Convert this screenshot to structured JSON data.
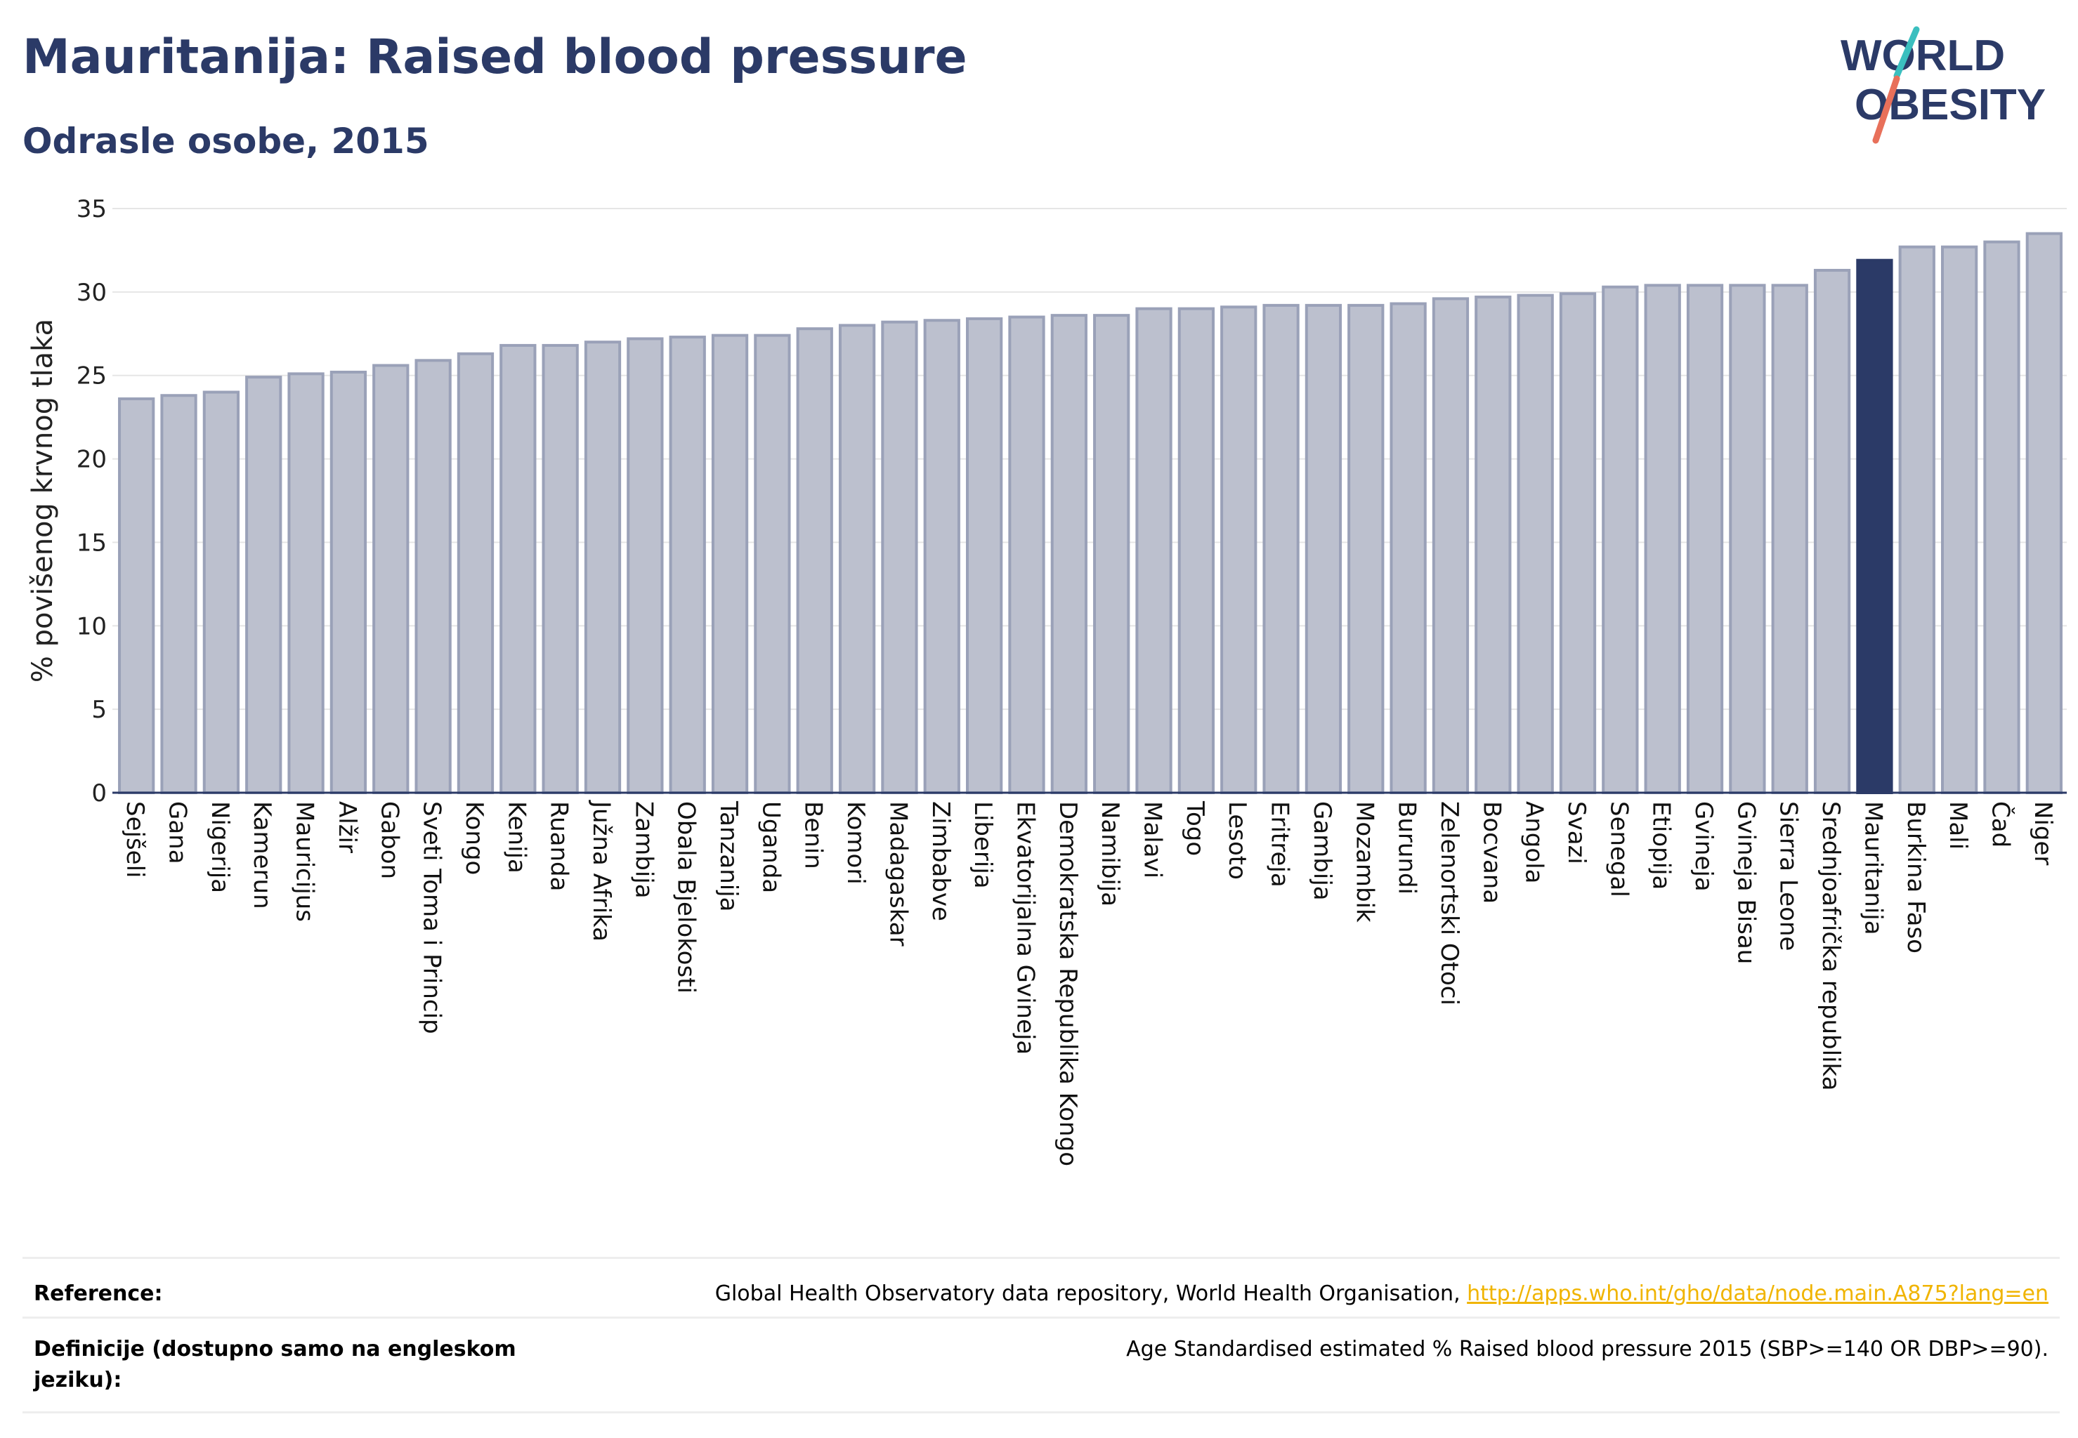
{
  "header": {
    "title": "Mauritanija: Raised blood pressure",
    "subtitle": "Odrasle osobe, 2015"
  },
  "logo": {
    "line1": "WORLD",
    "line2": "OBESITY"
  },
  "colors": {
    "bar": "#bcc0ce",
    "bar_edge": "#9aa1b8",
    "highlight": "#2b3a67",
    "title": "#2b3a67",
    "link": "#f0b400",
    "grid": "#e6e6e6"
  },
  "chart_data": {
    "type": "bar",
    "ylabel": "% povišenog krvnog tlaka",
    "ylim": [
      0,
      35
    ],
    "yticks": [
      0,
      5,
      10,
      15,
      20,
      25,
      30,
      35
    ],
    "highlight": "Mauritanija",
    "categories": [
      "Sejšeli",
      "Gana",
      "Nigerija",
      "Kamerun",
      "Mauricijus",
      "Alžir",
      "Gabon",
      "Sveti Toma i Princip",
      "Kongo",
      "Kenija",
      "Ruanda",
      "Južna Afrika",
      "Zambija",
      "Obala Bjelokosti",
      "Tanzanija",
      "Uganda",
      "Benin",
      "Komori",
      "Madagaskar",
      "Zimbabve",
      "Liberija",
      "Ekvatorijalna Gvineja",
      "Demokratska Republika Kongo",
      "Namibija",
      "Malavi",
      "Togo",
      "Lesoto",
      "Eritreja",
      "Gambija",
      "Mozambik",
      "Burundi",
      "Zelenortski Otoci",
      "Bocvana",
      "Angola",
      "Svazi",
      "Senegal",
      "Etiopija",
      "Gvineja",
      "Gvineja Bisau",
      "Sierra Leone",
      "Srednjoafrička republika",
      "Mauritanija",
      "Burkina Faso",
      "Mali",
      "Čad",
      "Niger"
    ],
    "values": [
      23.6,
      23.8,
      24.0,
      24.9,
      25.1,
      25.2,
      25.6,
      25.9,
      26.3,
      26.8,
      26.8,
      27.0,
      27.2,
      27.3,
      27.4,
      27.4,
      27.8,
      28.0,
      28.2,
      28.3,
      28.4,
      28.5,
      28.6,
      28.6,
      29.0,
      29.0,
      29.1,
      29.2,
      29.2,
      29.2,
      29.3,
      29.6,
      29.7,
      29.8,
      29.9,
      30.3,
      30.4,
      30.4,
      30.4,
      30.4,
      31.3,
      31.9,
      32.7,
      32.7,
      33.0,
      33.5
    ]
  },
  "reference": {
    "label": "Reference:",
    "text": "Global Health Observatory data repository, World Health Organisation, ",
    "link": "http://apps.who.int/gho/data/node.main.A875?lang=en"
  },
  "definition": {
    "label": "Definicije (dostupno samo na engleskom jeziku):",
    "text": "Age Standardised estimated % Raised blood pressure 2015 (SBP>=140 OR DBP>=90)."
  }
}
